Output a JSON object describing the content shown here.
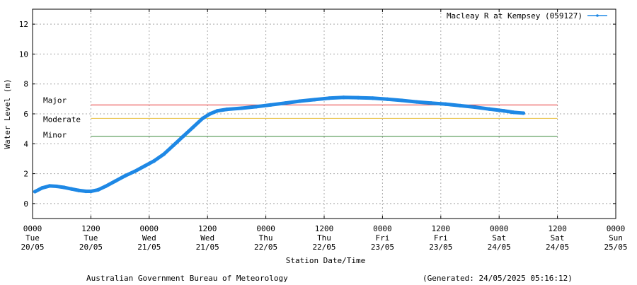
{
  "chart_data": {
    "type": "line",
    "ylabel": "Water Level (m)",
    "xlabel": "Station Date/Time",
    "ylim": [
      -1,
      13
    ],
    "yticks": [
      0,
      2,
      4,
      6,
      8,
      10,
      12
    ],
    "x_unit": "hours since 0000 Tue 20/05",
    "xlim": [
      0,
      120
    ],
    "xticks": [
      {
        "hour": 0,
        "time": "0000",
        "day": "Tue",
        "date": "20/05"
      },
      {
        "hour": 12,
        "time": "1200",
        "day": "Tue",
        "date": "20/05"
      },
      {
        "hour": 24,
        "time": "0000",
        "day": "Wed",
        "date": "21/05"
      },
      {
        "hour": 36,
        "time": "1200",
        "day": "Wed",
        "date": "21/05"
      },
      {
        "hour": 48,
        "time": "0000",
        "day": "Thu",
        "date": "22/05"
      },
      {
        "hour": 60,
        "time": "1200",
        "day": "Thu",
        "date": "22/05"
      },
      {
        "hour": 72,
        "time": "0000",
        "day": "Fri",
        "date": "23/05"
      },
      {
        "hour": 84,
        "time": "1200",
        "day": "Fri",
        "date": "23/05"
      },
      {
        "hour": 96,
        "time": "0000",
        "day": "Sat",
        "date": "24/05"
      },
      {
        "hour": 108,
        "time": "1200",
        "day": "Sat",
        "date": "24/05"
      },
      {
        "hour": 120,
        "time": "0000",
        "day": "Sun",
        "date": "25/05"
      }
    ],
    "grid": true,
    "legend_position": "top-right",
    "thresholds": [
      {
        "label": "Major",
        "value": 6.6,
        "color": "#e53030",
        "x_start": 12,
        "x_end": 108
      },
      {
        "label": "Moderate",
        "value": 5.7,
        "color": "#e8c040",
        "x_start": 12,
        "x_end": 108
      },
      {
        "label": "Minor",
        "value": 4.5,
        "color": "#3a8a3a",
        "x_start": 12,
        "x_end": 108
      }
    ],
    "series": [
      {
        "name": "Macleay R at Kempsey (059127)",
        "color": "#1e88e5",
        "points": [
          [
            0.5,
            0.8
          ],
          [
            2,
            1.05
          ],
          [
            3.5,
            1.18
          ],
          [
            5,
            1.15
          ],
          [
            6.5,
            1.08
          ],
          [
            8,
            0.98
          ],
          [
            9.5,
            0.88
          ],
          [
            11,
            0.82
          ],
          [
            12,
            0.82
          ],
          [
            13.5,
            0.92
          ],
          [
            15,
            1.15
          ],
          [
            17,
            1.5
          ],
          [
            19,
            1.85
          ],
          [
            21,
            2.15
          ],
          [
            23,
            2.5
          ],
          [
            25,
            2.85
          ],
          [
            27,
            3.3
          ],
          [
            29,
            3.9
          ],
          [
            31,
            4.5
          ],
          [
            33,
            5.1
          ],
          [
            35,
            5.7
          ],
          [
            36.5,
            6.0
          ],
          [
            38,
            6.2
          ],
          [
            40,
            6.3
          ],
          [
            43,
            6.38
          ],
          [
            46,
            6.48
          ],
          [
            49,
            6.6
          ],
          [
            52,
            6.72
          ],
          [
            55,
            6.85
          ],
          [
            58,
            6.95
          ],
          [
            61,
            7.05
          ],
          [
            64,
            7.1
          ],
          [
            67,
            7.08
          ],
          [
            70,
            7.05
          ],
          [
            73,
            6.98
          ],
          [
            76,
            6.9
          ],
          [
            79,
            6.8
          ],
          [
            82,
            6.72
          ],
          [
            85,
            6.65
          ],
          [
            88,
            6.55
          ],
          [
            91,
            6.45
          ],
          [
            94,
            6.32
          ],
          [
            97,
            6.2
          ],
          [
            99,
            6.1
          ],
          [
            101,
            6.05
          ]
        ]
      }
    ]
  },
  "footer": {
    "agency": "Australian Government Bureau of Meteorology",
    "generated": "(Generated: 24/05/2025 05:16:12)"
  }
}
